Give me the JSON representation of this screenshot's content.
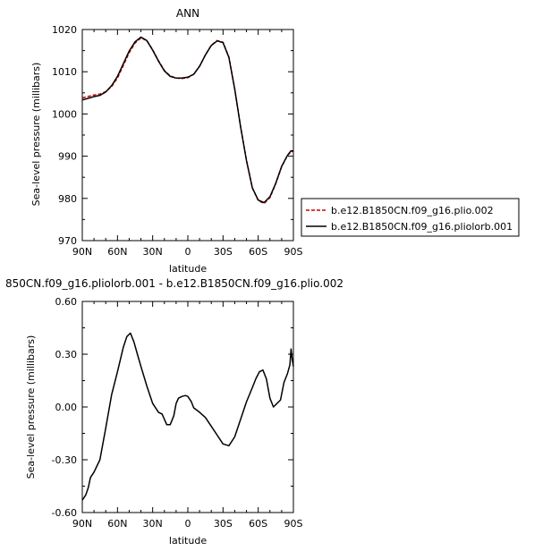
{
  "chart_data": [
    {
      "type": "line",
      "title": "ANN",
      "xlabel": "latitude",
      "ylabel": "Sea-level pressure (millibars)",
      "x_ticks": [
        "90N",
        "60N",
        "30N",
        "0",
        "30S",
        "60S",
        "90S"
      ],
      "y_ticks": [
        "970",
        "980",
        "990",
        "1000",
        "1010",
        "1020"
      ],
      "xlim": [
        90,
        -90
      ],
      "ylim": [
        970,
        1020
      ],
      "legend": "right",
      "series": [
        {
          "name": "b.e12.B1850CN.f09_g16.plio.002",
          "color": "#cc0000",
          "dash": true,
          "x": [
            90,
            80,
            75,
            70,
            65,
            60,
            55,
            50,
            45,
            40,
            35,
            30,
            25,
            20,
            15,
            10,
            5,
            0,
            -5,
            -10,
            -15,
            -20,
            -25,
            -30,
            -35,
            -40,
            -45,
            -50,
            -55,
            -60,
            -65,
            -70,
            -75,
            -80,
            -85,
            -88,
            -90
          ],
          "values": [
            1003.8,
            1004.5,
            1004.7,
            1005.3,
            1006.5,
            1008.5,
            1011.5,
            1014.5,
            1016.8,
            1018.0,
            1017.4,
            1015.2,
            1012.6,
            1010.3,
            1009.0,
            1008.5,
            1008.4,
            1008.6,
            1009.4,
            1011.3,
            1014.0,
            1016.3,
            1017.4,
            1017.0,
            1013.5,
            1006.0,
            997.0,
            989.0,
            982.5,
            979.5,
            978.8,
            980.2,
            983.5,
            987.5,
            990.2,
            991.0,
            991.2
          ]
        },
        {
          "name": "b.e12.B1850CN.f09_g16.pliolorb.001",
          "color": "#000000",
          "dash": false,
          "x": [
            90,
            80,
            75,
            70,
            65,
            60,
            55,
            50,
            45,
            40,
            35,
            30,
            25,
            20,
            15,
            10,
            5,
            0,
            -5,
            -10,
            -15,
            -20,
            -25,
            -30,
            -35,
            -40,
            -45,
            -50,
            -55,
            -60,
            -65,
            -70,
            -75,
            -80,
            -85,
            -88,
            -90
          ],
          "values": [
            1003.3,
            1004.1,
            1004.4,
            1005.2,
            1006.7,
            1008.9,
            1011.9,
            1014.9,
            1017.1,
            1018.2,
            1017.4,
            1015.1,
            1012.5,
            1010.2,
            1008.9,
            1008.5,
            1008.5,
            1008.7,
            1009.4,
            1011.3,
            1014.0,
            1016.2,
            1017.3,
            1016.9,
            1013.4,
            1005.9,
            996.9,
            988.9,
            982.5,
            979.6,
            979.0,
            980.4,
            983.6,
            987.6,
            990.2,
            991.3,
            991.2
          ]
        }
      ]
    },
    {
      "type": "line",
      "title": "850CN.f09_g16.pliolorb.001 - b.e12.B1850CN.f09_g16.plio.002",
      "xlabel": "latitude",
      "ylabel": "Sea-level pressure (millibars)",
      "x_ticks": [
        "90N",
        "60N",
        "30N",
        "0",
        "30S",
        "60S",
        "90S"
      ],
      "y_ticks": [
        "0.60",
        "0.30",
        "0.00",
        "-0.30",
        "-0.60"
      ],
      "xlim": [
        90,
        -90
      ],
      "ylim": [
        -0.6,
        0.6
      ],
      "series": [
        {
          "color": "#000000",
          "x": [
            90,
            87,
            85,
            83,
            80,
            75,
            70,
            65,
            60,
            55,
            52,
            49,
            46,
            43,
            40,
            35,
            30,
            25,
            22,
            20,
            18,
            15,
            12,
            10,
            8,
            5,
            2,
            0,
            -3,
            -5,
            -8,
            -10,
            -15,
            -20,
            -25,
            -30,
            -35,
            -40,
            -45,
            -50,
            -55,
            -58,
            -61,
            -64,
            -67,
            -70,
            -73,
            -76,
            -79,
            -82,
            -85,
            -87,
            -88,
            -89,
            -90
          ],
          "values": [
            -0.53,
            -0.5,
            -0.46,
            -0.4,
            -0.37,
            -0.3,
            -0.12,
            0.07,
            0.2,
            0.34,
            0.4,
            0.42,
            0.37,
            0.3,
            0.23,
            0.12,
            0.02,
            -0.03,
            -0.04,
            -0.07,
            -0.1,
            -0.1,
            -0.05,
            0.02,
            0.05,
            0.06,
            0.065,
            0.06,
            0.03,
            -0.005,
            -0.02,
            -0.03,
            -0.06,
            -0.11,
            -0.16,
            -0.21,
            -0.22,
            -0.17,
            -0.07,
            0.03,
            0.11,
            0.16,
            0.2,
            0.21,
            0.16,
            0.05,
            0.0,
            0.02,
            0.04,
            0.14,
            0.19,
            0.24,
            0.33,
            0.27,
            0.23
          ]
        }
      ]
    }
  ]
}
